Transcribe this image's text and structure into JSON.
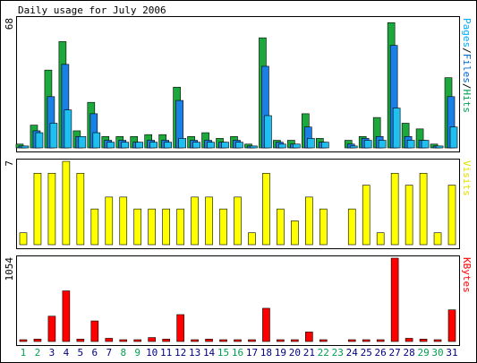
{
  "chart_data": {
    "type": "bar",
    "title": "Daily usage for July 2006",
    "categories": [
      "1",
      "2",
      "3",
      "4",
      "5",
      "6",
      "7",
      "8",
      "9",
      "10",
      "11",
      "12",
      "13",
      "14",
      "15",
      "16",
      "17",
      "18",
      "19",
      "20",
      "21",
      "22",
      "23",
      "24",
      "25",
      "26",
      "27",
      "28",
      "29",
      "30",
      "31"
    ],
    "weekend_days": [
      "1",
      "2",
      "8",
      "9",
      "15",
      "16",
      "22",
      "23",
      "29",
      "30"
    ],
    "panels": [
      {
        "id": "hits",
        "axis_max_label": "68",
        "ymax": 68,
        "legend": [
          {
            "text": "Pages",
            "color": "#00aaff"
          },
          {
            "text": "/",
            "color": "#000000"
          },
          {
            "text": "Files",
            "color": "#0066cc"
          },
          {
            "text": "/",
            "color": "#000000"
          },
          {
            "text": "Hits",
            "color": "#00a050"
          }
        ],
        "series": [
          {
            "name": "Hits",
            "color": "#1ca83c",
            "values": [
              2,
              12,
              41,
              56,
              9,
              24,
              6,
              6,
              6,
              7,
              7,
              32,
              6,
              8,
              5,
              6,
              2,
              58,
              4,
              4,
              18,
              5,
              0,
              4,
              6,
              16,
              66,
              13,
              10,
              2,
              37
            ]
          },
          {
            "name": "Files",
            "color": "#1a7fe6",
            "values": [
              1,
              9,
              27,
              44,
              6,
              18,
              4,
              4,
              3,
              4,
              4,
              25,
              4,
              4,
              3,
              4,
              1,
              43,
              3,
              2,
              11,
              3,
              0,
              2,
              5,
              6,
              54,
              6,
              4,
              1,
              27
            ]
          },
          {
            "name": "Pages",
            "color": "#1fbfef",
            "values": [
              1,
              8,
              13,
              20,
              6,
              8,
              3,
              3,
              3,
              3,
              3,
              5,
              3,
              3,
              3,
              3,
              1,
              17,
              2,
              2,
              5,
              3,
              0,
              1,
              4,
              4,
              21,
              4,
              4,
              1,
              11
            ]
          }
        ]
      },
      {
        "id": "visits",
        "axis_max_label": "7",
        "ymax": 7,
        "legend": [
          {
            "text": "Visits",
            "color": "#e0e000"
          }
        ],
        "series": [
          {
            "name": "Visits",
            "color": "#ffff00",
            "values": [
              1,
              6,
              6,
              7,
              6,
              3,
              4,
              4,
              3,
              3,
              3,
              3,
              4,
              4,
              3,
              4,
              1,
              6,
              3,
              2,
              4,
              3,
              0,
              3,
              5,
              1,
              6,
              5,
              6,
              1,
              5
            ]
          }
        ]
      },
      {
        "id": "kbytes",
        "axis_max_label": "1054",
        "ymax": 1054,
        "legend": [
          {
            "text": "KBytes",
            "color": "#ff0000"
          }
        ],
        "series": [
          {
            "name": "KBytes",
            "color": "#ff0000",
            "values": [
              8,
              30,
              320,
              640,
              30,
              260,
              40,
              15,
              15,
              50,
              30,
              340,
              15,
              30,
              15,
              15,
              20,
              420,
              15,
              15,
              120,
              15,
              0,
              15,
              15,
              15,
              1054,
              40,
              30,
              15,
              400
            ]
          }
        ]
      }
    ]
  },
  "colors": {
    "weekday_label": "#000080",
    "weekend_label": "#00a050"
  }
}
